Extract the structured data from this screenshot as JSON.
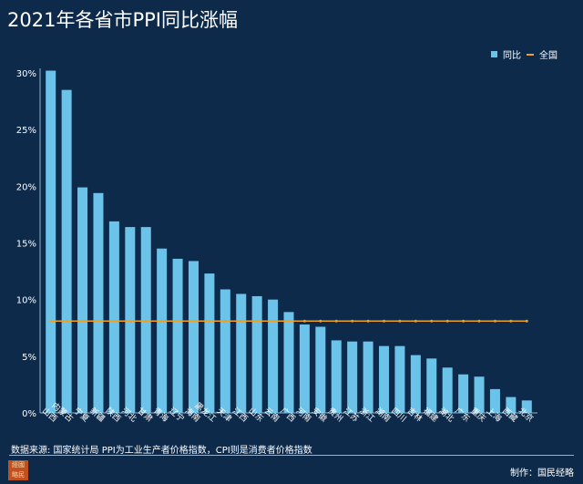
{
  "chart_data": {
    "type": "bar",
    "title": "2021年各省市PPI同比涨幅",
    "categories": [
      "山西",
      "内蒙古",
      "宁夏",
      "新疆",
      "陕西",
      "河北",
      "甘肃",
      "青海",
      "辽宁",
      "海南",
      "黑龙江",
      "天津",
      "江西",
      "山东",
      "云南",
      "广西",
      "河南",
      "安徽",
      "贵州",
      "江苏",
      "浙江",
      "湖南",
      "四川",
      "吉林",
      "福建",
      "湖北",
      "广东",
      "重庆",
      "上海",
      "西藏",
      "北京"
    ],
    "series": [
      {
        "name": "同比",
        "type": "bar",
        "color": "#6cc3ea",
        "values": [
          30.2,
          28.5,
          19.9,
          19.4,
          16.9,
          16.4,
          16.4,
          14.5,
          13.6,
          13.4,
          12.3,
          10.9,
          10.5,
          10.3,
          10.0,
          8.9,
          7.8,
          7.6,
          6.4,
          6.3,
          6.3,
          5.9,
          5.9,
          5.1,
          4.8,
          4.0,
          3.4,
          3.2,
          2.1,
          1.4,
          1.1
        ]
      },
      {
        "name": "全国",
        "type": "line",
        "color": "#f0a020",
        "value": 8.1
      }
    ],
    "yticks": [
      "0%",
      "5%",
      "10%",
      "15%",
      "20%",
      "25%",
      "30%"
    ],
    "ylim": [
      0,
      30
    ],
    "grid": false,
    "legend": "top-right"
  },
  "footer": {
    "source": "数据来源: 国家统计局  PPI为工业生产者价格指数，CPI则是消费者价格指数",
    "credit": "制作：国民经略",
    "seal_text": "经国略民"
  }
}
